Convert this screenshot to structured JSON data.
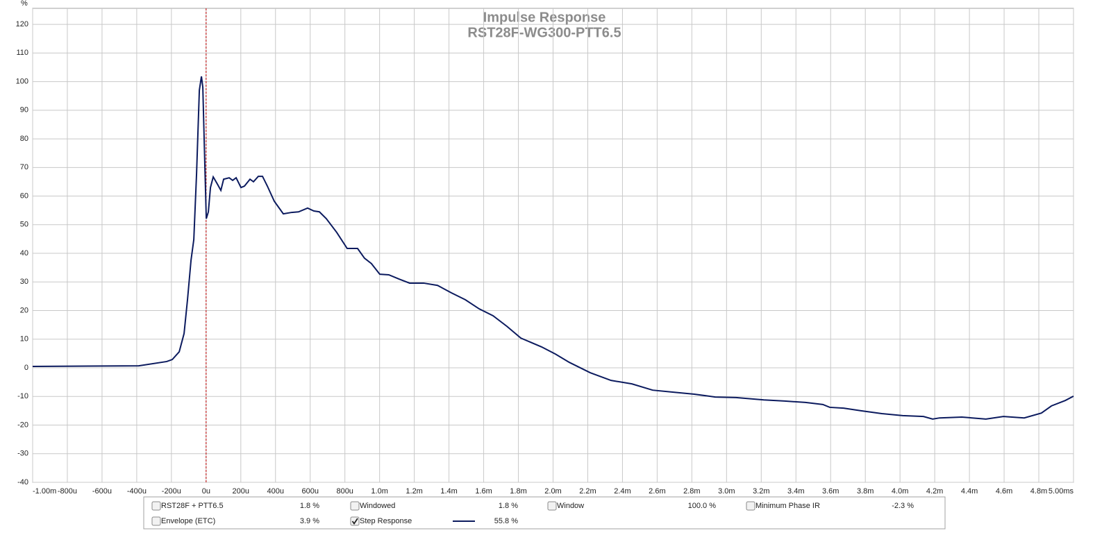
{
  "chart_data": {
    "type": "line",
    "title": "Impulse Response",
    "subtitle": "RST28F-WG300-PTT6.5",
    "y_unit": "%",
    "xlim": [
      -1.0,
      5.0
    ],
    "xticks": [
      {
        "value": -1.0,
        "label": "-1.00m"
      },
      {
        "value": -0.8,
        "label": "-800u"
      },
      {
        "value": -0.6,
        "label": "-600u"
      },
      {
        "value": -0.4,
        "label": "-400u"
      },
      {
        "value": -0.2,
        "label": "-200u"
      },
      {
        "value": 0,
        "label": "0u"
      },
      {
        "value": 0.2,
        "label": "200u"
      },
      {
        "value": 0.4,
        "label": "400u"
      },
      {
        "value": 0.6,
        "label": "600u"
      },
      {
        "value": 0.8,
        "label": "800u"
      },
      {
        "value": 1.0,
        "label": "1.0m"
      },
      {
        "value": 1.2,
        "label": "1.2m"
      },
      {
        "value": 1.4,
        "label": "1.4m"
      },
      {
        "value": 1.6,
        "label": "1.6m"
      },
      {
        "value": 1.8,
        "label": "1.8m"
      },
      {
        "value": 2.0,
        "label": "2.0m"
      },
      {
        "value": 2.2,
        "label": "2.2m"
      },
      {
        "value": 2.4,
        "label": "2.4m"
      },
      {
        "value": 2.6,
        "label": "2.6m"
      },
      {
        "value": 2.8,
        "label": "2.8m"
      },
      {
        "value": 3.0,
        "label": "3.0m"
      },
      {
        "value": 3.2,
        "label": "3.2m"
      },
      {
        "value": 3.4,
        "label": "3.4m"
      },
      {
        "value": 3.6,
        "label": "3.6m"
      },
      {
        "value": 3.8,
        "label": "3.8m"
      },
      {
        "value": 4.0,
        "label": "4.0m"
      },
      {
        "value": 4.2,
        "label": "4.2m"
      },
      {
        "value": 4.4,
        "label": "4.4m"
      },
      {
        "value": 4.6,
        "label": "4.6m"
      },
      {
        "value": 4.8,
        "label": "4.8m"
      },
      {
        "value": 5.0,
        "label": "5.00ms"
      }
    ],
    "ylim": [
      -40,
      125.6
    ],
    "yticks": [
      -40,
      -30,
      -20,
      -10,
      0,
      10,
      20,
      30,
      40,
      50,
      60,
      70,
      80,
      90,
      100,
      110,
      120
    ],
    "grid": true,
    "cursor_x": 0,
    "series": [
      {
        "name": "RST28F + PTT6.5",
        "readout": "1.8 %",
        "checked": false,
        "color": "#1f4fb4"
      },
      {
        "name": "Windowed",
        "readout": "1.8 %",
        "checked": false,
        "color": "#1f4fb4"
      },
      {
        "name": "Window",
        "readout": "100.0 %",
        "checked": false,
        "color": "#1f4fb4"
      },
      {
        "name": "Minimum Phase IR",
        "readout": "-2.3 %",
        "checked": false,
        "color": "#8a8a8a"
      },
      {
        "name": "Envelope (ETC)",
        "readout": "3.9 %",
        "checked": false,
        "color": "#1f4fb4"
      },
      {
        "name": "Step Response",
        "readout": "55.8 %",
        "checked": true,
        "color": "#0b1a5e",
        "x": [
          -1.0,
          -0.388,
          -0.227,
          -0.195,
          -0.155,
          -0.127,
          -0.107,
          -0.087,
          -0.071,
          -0.055,
          -0.039,
          -0.027,
          -0.019,
          -0.007,
          0.001,
          0.013,
          0.025,
          0.041,
          0.065,
          0.085,
          0.101,
          0.133,
          0.153,
          0.173,
          0.201,
          0.221,
          0.253,
          0.273,
          0.301,
          0.325,
          0.353,
          0.393,
          0.445,
          0.493,
          0.533,
          0.585,
          0.621,
          0.653,
          0.693,
          0.753,
          0.813,
          0.873,
          0.913,
          0.953,
          1.001,
          1.053,
          1.113,
          1.173,
          1.254,
          1.334,
          1.414,
          1.494,
          1.574,
          1.654,
          1.734,
          1.814,
          1.934,
          2.014,
          2.094,
          2.214,
          2.334,
          2.454,
          2.574,
          2.694,
          2.814,
          2.935,
          3.055,
          3.215,
          3.335,
          3.455,
          3.555,
          3.595,
          3.675,
          3.775,
          3.895,
          4.015,
          4.135,
          4.188,
          4.228,
          4.356,
          4.495,
          4.596,
          4.716,
          4.815,
          4.873,
          4.953,
          5.0
        ],
        "values": [
          0.5,
          0.7,
          2.2,
          2.9,
          5.6,
          12,
          24,
          37.6,
          44.8,
          67.9,
          97,
          101.8,
          98,
          70,
          52.1,
          54.5,
          63,
          66.7,
          64.2,
          62,
          65.9,
          66.4,
          65.5,
          66.4,
          63,
          63.5,
          65.9,
          65,
          66.9,
          66.9,
          63.5,
          58.2,
          53.8,
          54.3,
          54.5,
          55.8,
          54.8,
          54.5,
          52.1,
          47.3,
          41.7,
          41.7,
          38.3,
          36.4,
          32.7,
          32.5,
          31.0,
          29.6,
          29.6,
          28.8,
          26.2,
          23.8,
          20.6,
          18.2,
          14.5,
          10.4,
          7.3,
          4.8,
          1.9,
          -1.7,
          -4.4,
          -5.6,
          -7.8,
          -8.5,
          -9.2,
          -10.2,
          -10.4,
          -11.2,
          -11.6,
          -12.1,
          -12.8,
          -13.8,
          -14.1,
          -15.0,
          -16.0,
          -16.7,
          -17.0,
          -17.9,
          -17.5,
          -17.2,
          -17.9,
          -17.0,
          -17.5,
          -15.8,
          -13.3,
          -11.4,
          -9.9
        ]
      }
    ]
  }
}
